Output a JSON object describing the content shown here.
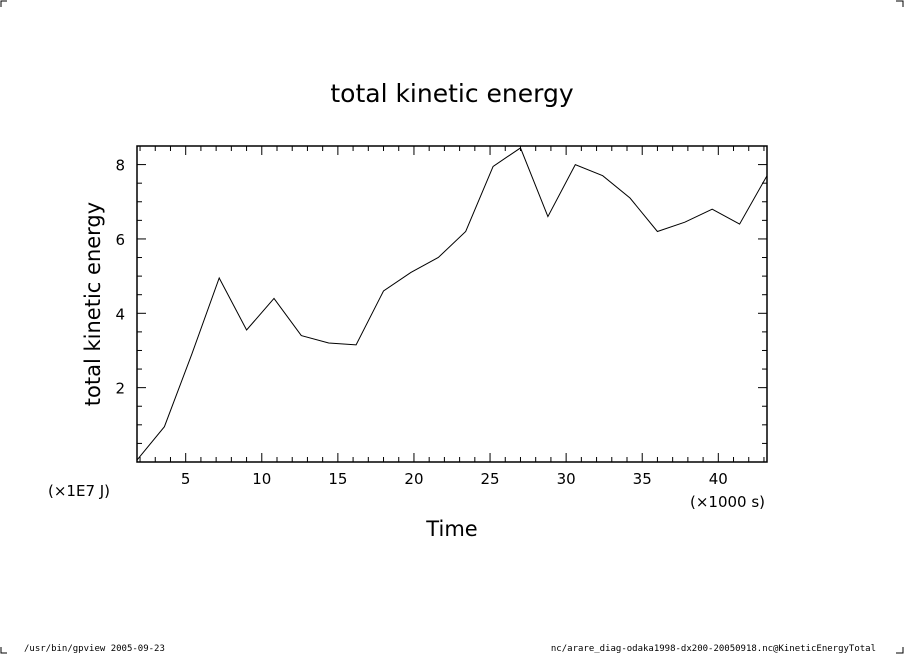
{
  "chart_data": {
    "type": "line",
    "title": "total kinetic energy",
    "xlabel": "Time",
    "ylabel": "total kinetic energy",
    "x_unit": "(×1000 s)",
    "y_unit": "(×1E7 J)",
    "xlim": [
      1.8,
      43.2
    ],
    "ylim": [
      0,
      8.5
    ],
    "x_ticks": [
      5,
      10,
      15,
      20,
      25,
      30,
      35,
      40
    ],
    "y_ticks": [
      2,
      4,
      6,
      8
    ],
    "x_tick_labels": [
      "5",
      "10",
      "15",
      "20",
      "25",
      "30",
      "35",
      "40"
    ],
    "y_tick_labels": [
      "2",
      "4",
      "6",
      "8"
    ],
    "grid": false,
    "series": [
      {
        "x": [
          1.8,
          3.6,
          5.4,
          7.2,
          9.0,
          10.8,
          12.6,
          14.4,
          16.2,
          18.0,
          19.8,
          21.6,
          23.4,
          25.2,
          27.0,
          28.8,
          30.6,
          32.4,
          34.2,
          36.0,
          37.8,
          39.6,
          41.4,
          43.2
        ],
        "y": [
          0.05,
          0.95,
          2.9,
          4.95,
          3.55,
          4.4,
          3.4,
          3.2,
          3.15,
          4.6,
          5.1,
          5.5,
          6.2,
          7.95,
          8.45,
          6.6,
          8.0,
          7.7,
          7.1,
          6.2,
          6.45,
          6.8,
          6.4,
          7.7
        ]
      }
    ]
  },
  "footer": {
    "left": "/usr/bin/gpview  2005-09-23",
    "right": "nc/arare_diag-odaka1998-dx200-20050918.nc@KineticEnergyTotal"
  }
}
